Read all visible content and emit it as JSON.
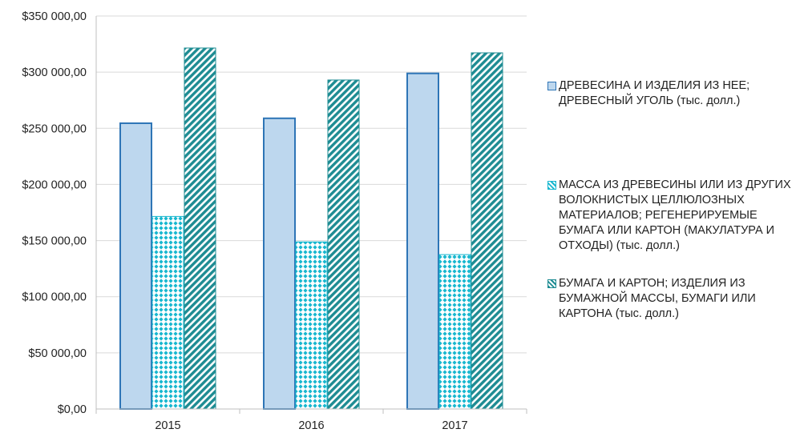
{
  "chart_data": {
    "type": "bar",
    "categories": [
      "2015",
      "2016",
      "2017"
    ],
    "series": [
      {
        "name": "ДРЕВЕСИНА И ИЗДЕЛИЯ ИЗ НЕЕ; ДРЕВЕСНЫЙ УГОЛЬ (тыс. долл.)",
        "values": [
          254500,
          258900,
          298900
        ],
        "color": "#bdd7ee",
        "border": "#2e75b6",
        "pattern": "solid"
      },
      {
        "name": "МАССА ИЗ ДРЕВЕСИНЫ ИЛИ ИЗ ДРУГИХ ВОЛОКНИСТЫХ ЦЕЛЛЮЛОЗНЫХ МАТЕРИАЛОВ; РЕГЕНЕРИРУЕМЫЕ БУМАГА ИЛИ КАРТОН (МАКУЛАТУРА И ОТХОДЫ) (тыс. долл.)",
        "values": [
          171500,
          148800,
          137500
        ],
        "color": "#17b7cf",
        "border": "#17b7cf",
        "pattern": "diamond"
      },
      {
        "name": "БУМАГА И КАРТОН; ИЗДЕЛИЯ ИЗ БУМАЖНОЙ МАССЫ, БУМАГИ ИЛИ КАРТОНА (тыс. долл.)",
        "values": [
          321500,
          293000,
          317200
        ],
        "color": "#1e8c93",
        "border": "#1e8c93",
        "pattern": "diagonal"
      }
    ],
    "ylim": [
      0,
      350000
    ],
    "ytick_step": 50000,
    "ytick_labels": [
      "$0,00",
      "$50 000,00",
      "$100 000,00",
      "$150 000,00",
      "$200 000,00",
      "$250 000,00",
      "$300 000,00",
      "$350 000,00"
    ],
    "grid": true,
    "legend_position": "right",
    "title": "",
    "xlabel": "",
    "ylabel": ""
  },
  "legend": {
    "items": [
      {
        "text": "ДРЕВЕСИНА И ИЗДЕЛИЯ ИЗ НЕЕ; ДРЕВЕСНЫЙ УГОЛЬ (тыс. долл.)"
      },
      {
        "text": "МАССА ИЗ ДРЕВЕСИНЫ ИЛИ ИЗ ДРУГИХ ВОЛОКНИСТЫХ ЦЕЛЛЮЛОЗНЫХ МАТЕРИАЛОВ; РЕГЕНЕРИРУЕМЫЕ БУМАГА ИЛИ КАРТОН (МАКУЛАТУРА И ОТХОДЫ) (тыс. долл.)"
      },
      {
        "text": "БУМАГА И КАРТОН; ИЗДЕЛИЯ ИЗ БУМАЖНОЙ МАССЫ, БУМАГИ ИЛИ КАРТОНА (тыс. долл.)"
      }
    ]
  }
}
